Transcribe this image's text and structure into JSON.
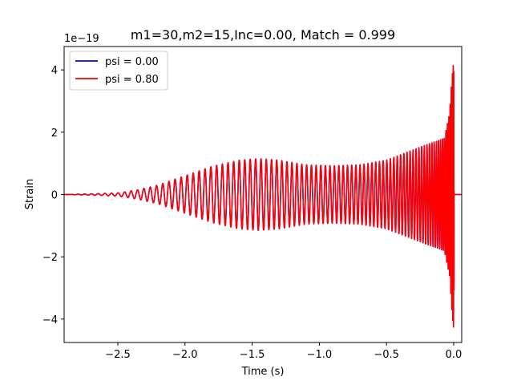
{
  "chart_data": {
    "type": "line",
    "title": "m1=30,m2=15,Inc=0.00, Match = 0.999",
    "xlabel": "Time (s)",
    "ylabel": "Strain",
    "y_offset_label": "1e−19",
    "xlim": [
      -2.9,
      0.06
    ],
    "ylim": [
      -4.75,
      4.75
    ],
    "xticks": [
      -2.5,
      -2.0,
      -1.5,
      -1.0,
      -0.5,
      0.0
    ],
    "xtick_labels": [
      "−2.5",
      "−2.0",
      "−1.5",
      "−1.0",
      "−0.5",
      "0.0"
    ],
    "yticks": [
      -4,
      -2,
      0,
      2,
      4
    ],
    "ytick_labels": [
      "−4",
      "−2",
      "0",
      "2",
      "4"
    ],
    "grid": false,
    "legend_position": "top-left",
    "units": "strain (×1e−19)",
    "series": [
      {
        "name": "psi = 0.00",
        "color": "#0000ff",
        "envelope": {
          "t": [
            -2.9,
            -2.7,
            -2.5,
            -2.35,
            -2.2,
            -2.0,
            -1.8,
            -1.6,
            -1.45,
            -1.3,
            -1.1,
            -0.9,
            -0.7,
            -0.5,
            -0.35,
            -0.2,
            -0.12,
            -0.07,
            -0.03,
            -0.01,
            0.0,
            0.01,
            0.06
          ],
          "amplitude": [
            0.0,
            0.02,
            0.05,
            0.15,
            0.3,
            0.6,
            0.9,
            1.1,
            1.15,
            1.1,
            0.95,
            0.92,
            0.95,
            1.1,
            1.35,
            1.6,
            1.72,
            1.8,
            2.6,
            3.9,
            4.3,
            0.0,
            0.0
          ]
        },
        "cycles_visible": 90
      },
      {
        "name": "psi = 0.80",
        "color": "#ff0000",
        "envelope": {
          "t": [
            -2.9,
            -2.7,
            -2.5,
            -2.35,
            -2.2,
            -2.0,
            -1.8,
            -1.6,
            -1.45,
            -1.3,
            -1.1,
            -0.9,
            -0.7,
            -0.5,
            -0.35,
            -0.2,
            -0.12,
            -0.07,
            -0.03,
            -0.01,
            0.0,
            0.01,
            0.06
          ],
          "amplitude": [
            0.0,
            0.02,
            0.05,
            0.15,
            0.3,
            0.6,
            0.9,
            1.1,
            1.15,
            1.1,
            0.95,
            0.92,
            0.95,
            1.1,
            1.35,
            1.6,
            1.72,
            1.8,
            2.6,
            3.9,
            4.3,
            0.0,
            0.0
          ]
        },
        "cycles_visible": 90
      }
    ]
  }
}
